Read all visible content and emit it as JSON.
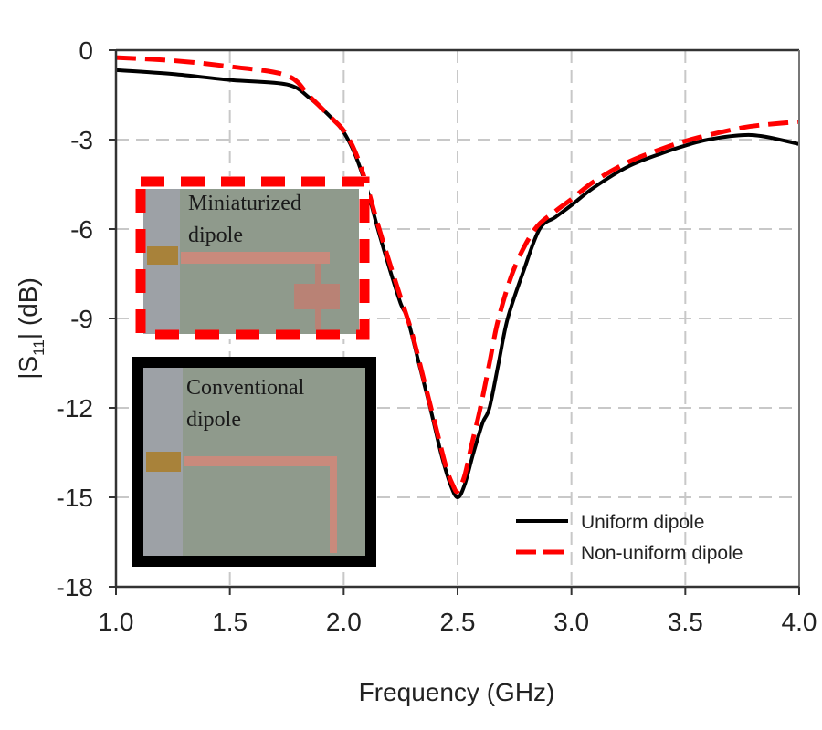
{
  "chart_data": {
    "type": "line",
    "title": "",
    "xlabel": "Frequency (GHz)",
    "ylabel_main": "|S",
    "ylabel_sub": "11",
    "ylabel_tail": "| (dB)",
    "xlim": [
      1.0,
      4.0
    ],
    "ylim": [
      -18,
      0
    ],
    "xticks": [
      1.0,
      1.5,
      2.0,
      2.5,
      3.0,
      3.5,
      4.0
    ],
    "xtick_labels": [
      "1.0",
      "1.5",
      "2.0",
      "2.5",
      "3.0",
      "3.5",
      "4.0"
    ],
    "yticks": [
      0,
      -3,
      -6,
      -9,
      -12,
      -15,
      -18
    ],
    "ytick_labels": [
      "0",
      "-3",
      "-6",
      "-9",
      "-12",
      "-15",
      "-18"
    ],
    "grid": true,
    "legend_position": "bottom-right",
    "series": [
      {
        "name": "Uniform dipole",
        "color": "#000000",
        "style": "solid",
        "x": [
          1.0,
          1.25,
          1.5,
          1.75,
          1.85,
          1.95,
          2.0,
          2.05,
          2.1,
          2.15,
          2.2,
          2.25,
          2.28,
          2.33,
          2.38,
          2.43,
          2.47,
          2.5,
          2.53,
          2.57,
          2.61,
          2.64,
          2.68,
          2.72,
          2.79,
          2.86,
          2.93,
          3.0,
          3.1,
          3.25,
          3.4,
          3.5,
          3.6,
          3.75,
          3.85,
          4.0
        ],
        "y": [
          -0.67,
          -0.8,
          -1.0,
          -1.15,
          -1.6,
          -2.3,
          -2.75,
          -3.5,
          -4.6,
          -6.0,
          -7.3,
          -8.5,
          -9.0,
          -10.5,
          -12.0,
          -13.6,
          -14.6,
          -15.0,
          -14.6,
          -13.5,
          -12.5,
          -12.0,
          -10.5,
          -9.0,
          -7.4,
          -6.0,
          -5.6,
          -5.2,
          -4.6,
          -3.9,
          -3.45,
          -3.2,
          -3.0,
          -2.85,
          -2.9,
          -3.15
        ]
      },
      {
        "name": "Non-uniform dipole",
        "color": "#ff0000",
        "style": "dashed",
        "x": [
          1.0,
          1.25,
          1.5,
          1.75,
          1.85,
          1.95,
          2.0,
          2.05,
          2.1,
          2.15,
          2.2,
          2.25,
          2.3,
          2.35,
          2.4,
          2.45,
          2.48,
          2.5,
          2.53,
          2.56,
          2.6,
          2.64,
          2.68,
          2.75,
          2.84,
          2.93,
          3.0,
          3.1,
          3.25,
          3.4,
          3.5,
          3.6,
          3.75,
          3.85,
          4.0
        ],
        "y": [
          -0.25,
          -0.35,
          -0.55,
          -0.85,
          -1.55,
          -2.3,
          -2.7,
          -3.4,
          -4.5,
          -5.85,
          -7.1,
          -8.3,
          -9.5,
          -11.0,
          -12.5,
          -14.0,
          -14.6,
          -14.8,
          -14.3,
          -13.3,
          -12.0,
          -10.5,
          -9.0,
          -7.3,
          -6.0,
          -5.4,
          -5.0,
          -4.4,
          -3.75,
          -3.3,
          -3.05,
          -2.85,
          -2.6,
          -2.5,
          -2.4
        ]
      }
    ]
  },
  "insets": {
    "miniaturized": {
      "line1": "Miniaturized",
      "line2": "dipole",
      "frame_color": "#ff0000"
    },
    "conventional": {
      "line1": "Conventional",
      "line2": "dipole",
      "frame_color": "#000000"
    }
  },
  "colors": {
    "grid": "#c8c8c8",
    "axis": "#333333",
    "board": "#8f9a8c",
    "copper": "#c98a7c",
    "panel": "#9da1a6"
  }
}
